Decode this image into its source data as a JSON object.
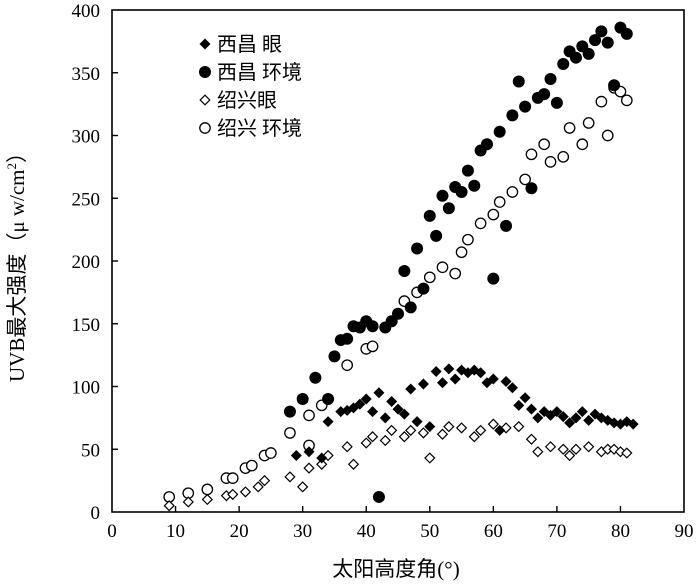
{
  "chart_data": {
    "type": "scatter",
    "title": "",
    "xlabel": "太阳高度角(°)",
    "ylabel": "UVB最大强度（μw/cm²）",
    "ylabel_main": "UVB最大强度（",
    "ylabel_unit_base": "μ w/cm",
    "ylabel_unit_sup": "2",
    "ylabel_close": "）",
    "xlim": [
      0,
      90
    ],
    "ylim": [
      0,
      400
    ],
    "xticks": [
      "0",
      "10",
      "20",
      "30",
      "40",
      "50",
      "60",
      "70",
      "80",
      "90"
    ],
    "yticks": [
      "0",
      "50",
      "100",
      "150",
      "200",
      "250",
      "300",
      "350",
      "400"
    ],
    "grid": false,
    "legend_position": "top-left",
    "series": [
      {
        "name": "西昌 眼",
        "marker": "filled-diamond",
        "color": "#000000",
        "points": [
          [
            29,
            45
          ],
          [
            31,
            48
          ],
          [
            33,
            43
          ],
          [
            34,
            72
          ],
          [
            36,
            80
          ],
          [
            37,
            81
          ],
          [
            38,
            83
          ],
          [
            39,
            86
          ],
          [
            40,
            90
          ],
          [
            41,
            80
          ],
          [
            42,
            95
          ],
          [
            43,
            75
          ],
          [
            44,
            88
          ],
          [
            45,
            82
          ],
          [
            46,
            78
          ],
          [
            47,
            98
          ],
          [
            48,
            72
          ],
          [
            49,
            102
          ],
          [
            50,
            68
          ],
          [
            51,
            112
          ],
          [
            52,
            103
          ],
          [
            53,
            114
          ],
          [
            54,
            106
          ],
          [
            55,
            113
          ],
          [
            56,
            111
          ],
          [
            57,
            113
          ],
          [
            58,
            111
          ],
          [
            59,
            103
          ],
          [
            60,
            106
          ],
          [
            61,
            65
          ],
          [
            62,
            104
          ],
          [
            63,
            99
          ],
          [
            64,
            85
          ],
          [
            65,
            91
          ],
          [
            66,
            82
          ],
          [
            67,
            75
          ],
          [
            68,
            80
          ],
          [
            69,
            77
          ],
          [
            70,
            80
          ],
          [
            71,
            76
          ],
          [
            72,
            71
          ],
          [
            73,
            75
          ],
          [
            74,
            80
          ],
          [
            75,
            73
          ],
          [
            76,
            78
          ],
          [
            77,
            75
          ],
          [
            78,
            73
          ],
          [
            79,
            71
          ],
          [
            80,
            70
          ],
          [
            81,
            72
          ],
          [
            82,
            70
          ]
        ]
      },
      {
        "name": "西昌 环境",
        "marker": "filled-circle",
        "color": "#000000",
        "points": [
          [
            28,
            80
          ],
          [
            30,
            90
          ],
          [
            32,
            107
          ],
          [
            34,
            90
          ],
          [
            35,
            124
          ],
          [
            36,
            137
          ],
          [
            37,
            138
          ],
          [
            38,
            148
          ],
          [
            39,
            147
          ],
          [
            40,
            152
          ],
          [
            41,
            148
          ],
          [
            42,
            12
          ],
          [
            43,
            147
          ],
          [
            44,
            152
          ],
          [
            45,
            158
          ],
          [
            46,
            192
          ],
          [
            47,
            163
          ],
          [
            48,
            210
          ],
          [
            49,
            178
          ],
          [
            50,
            236
          ],
          [
            51,
            220
          ],
          [
            52,
            252
          ],
          [
            53,
            242
          ],
          [
            54,
            259
          ],
          [
            55,
            255
          ],
          [
            56,
            272
          ],
          [
            57,
            260
          ],
          [
            58,
            288
          ],
          [
            59,
            293
          ],
          [
            60,
            186
          ],
          [
            61,
            303
          ],
          [
            62,
            228
          ],
          [
            63,
            316
          ],
          [
            64,
            343
          ],
          [
            65,
            323
          ],
          [
            66,
            258
          ],
          [
            67,
            330
          ],
          [
            68,
            333
          ],
          [
            69,
            345
          ],
          [
            70,
            326
          ],
          [
            71,
            357
          ],
          [
            72,
            367
          ],
          [
            73,
            362
          ],
          [
            74,
            371
          ],
          [
            75,
            365
          ],
          [
            76,
            376
          ],
          [
            77,
            383
          ],
          [
            78,
            374
          ],
          [
            79,
            340
          ],
          [
            80,
            386
          ],
          [
            81,
            381
          ]
        ]
      },
      {
        "name": "绍兴眼",
        "marker": "open-diamond",
        "color": "#000000",
        "points": [
          [
            9,
            5
          ],
          [
            12,
            8
          ],
          [
            15,
            10
          ],
          [
            18,
            13
          ],
          [
            19,
            14
          ],
          [
            21,
            16
          ],
          [
            23,
            20
          ],
          [
            24,
            25
          ],
          [
            28,
            28
          ],
          [
            30,
            20
          ],
          [
            31,
            35
          ],
          [
            33,
            38
          ],
          [
            34,
            45
          ],
          [
            37,
            52
          ],
          [
            38,
            38
          ],
          [
            40,
            55
          ],
          [
            41,
            60
          ],
          [
            43,
            57
          ],
          [
            44,
            65
          ],
          [
            46,
            60
          ],
          [
            47,
            65
          ],
          [
            49,
            63
          ],
          [
            50,
            43
          ],
          [
            52,
            62
          ],
          [
            53,
            68
          ],
          [
            55,
            67
          ],
          [
            57,
            60
          ],
          [
            58,
            65
          ],
          [
            60,
            70
          ],
          [
            62,
            67
          ],
          [
            64,
            68
          ],
          [
            66,
            58
          ],
          [
            67,
            48
          ],
          [
            69,
            52
          ],
          [
            71,
            50
          ],
          [
            72,
            45
          ],
          [
            73,
            50
          ],
          [
            75,
            52
          ],
          [
            77,
            48
          ],
          [
            78,
            50
          ],
          [
            79,
            50
          ],
          [
            80,
            48
          ],
          [
            81,
            47
          ]
        ]
      },
      {
        "name": "绍兴 环境",
        "marker": "open-circle",
        "color": "#000000",
        "points": [
          [
            9,
            12
          ],
          [
            12,
            15
          ],
          [
            15,
            18
          ],
          [
            18,
            27
          ],
          [
            19,
            27
          ],
          [
            21,
            35
          ],
          [
            22,
            37
          ],
          [
            24,
            45
          ],
          [
            25,
            47
          ],
          [
            28,
            63
          ],
          [
            31,
            53
          ],
          [
            31,
            77
          ],
          [
            33,
            85
          ],
          [
            37,
            117
          ],
          [
            40,
            130
          ],
          [
            41,
            132
          ],
          [
            46,
            168
          ],
          [
            48,
            175
          ],
          [
            50,
            187
          ],
          [
            52,
            195
          ],
          [
            54,
            190
          ],
          [
            55,
            207
          ],
          [
            56,
            217
          ],
          [
            58,
            230
          ],
          [
            60,
            237
          ],
          [
            61,
            247
          ],
          [
            63,
            255
          ],
          [
            65,
            265
          ],
          [
            66,
            285
          ],
          [
            68,
            293
          ],
          [
            69,
            279
          ],
          [
            71,
            283
          ],
          [
            72,
            306
          ],
          [
            74,
            293
          ],
          [
            75,
            310
          ],
          [
            77,
            327
          ],
          [
            78,
            300
          ],
          [
            79,
            338
          ],
          [
            80,
            335
          ],
          [
            81,
            328
          ]
        ]
      }
    ]
  }
}
